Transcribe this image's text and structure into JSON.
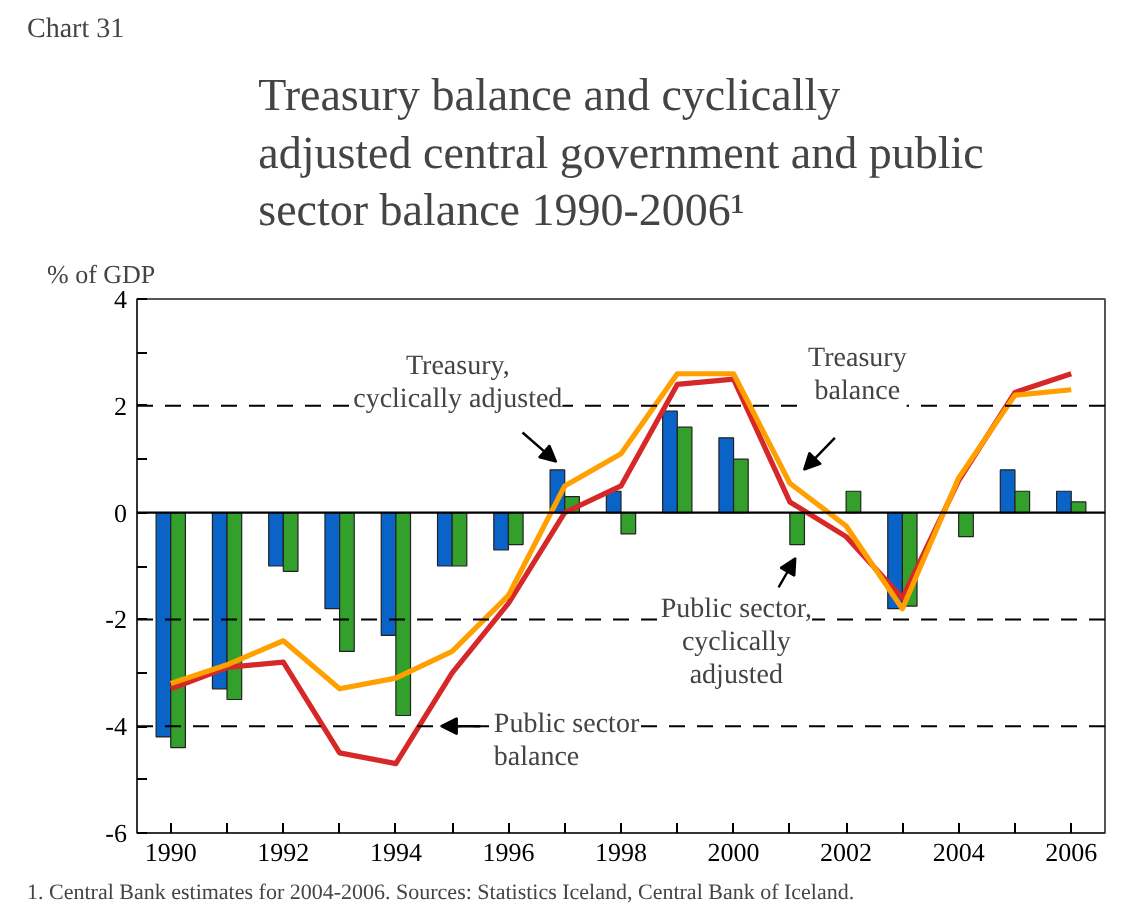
{
  "chart_data": {
    "type": "bar",
    "title": "Treasury balance and cyclically\nadjusted central government and public\nsector balance 1990-2006¹",
    "ylabel": "% of GDP",
    "x": [
      1990,
      1991,
      1992,
      1993,
      1994,
      1995,
      1996,
      1997,
      1998,
      1999,
      2000,
      2001,
      2002,
      2003,
      2004,
      2005,
      2006
    ],
    "series": [
      {
        "color": "#0a64c8",
        "values": [
          -4.2,
          -3.3,
          -1.0,
          -1.8,
          -2.3,
          -1.0,
          -0.7,
          0.8,
          0.4,
          1.9,
          1.4,
          null,
          null,
          -1.8,
          null,
          0.8,
          0.4
        ]
      },
      {
        "color": "#33a02c",
        "values": [
          -4.4,
          -3.5,
          -1.1,
          -2.6,
          -3.8,
          -1.0,
          -0.6,
          0.3,
          -0.4,
          1.6,
          1.0,
          -0.6,
          0.4,
          -1.75,
          -0.45,
          0.4,
          0.2
        ]
      },
      {
        "type": "line",
        "color": "#d62828",
        "values": [
          -3.3,
          -2.9,
          -2.8,
          -4.5,
          -4.7,
          -3.0,
          -1.7,
          0.0,
          0.5,
          2.4,
          2.5,
          0.2,
          -0.45,
          -1.6,
          0.6,
          2.25,
          2.6
        ]
      },
      {
        "type": "line",
        "color": "#ffa000",
        "values": [
          -3.2,
          -2.85,
          -2.4,
          -3.3,
          -3.1,
          -2.6,
          -1.55,
          0.5,
          1.1,
          2.6,
          2.6,
          0.55,
          -0.25,
          -1.8,
          0.65,
          2.2,
          2.3
        ]
      }
    ],
    "xlim": [
      1989.4,
      2006.6
    ],
    "xticks": [
      1990,
      {
        "value": 1991,
        "label": null
      },
      1992,
      {
        "value": 1993,
        "label": null
      },
      1994,
      {
        "value": 1995,
        "label": null
      },
      1996,
      {
        "value": 1997,
        "label": null
      },
      1998,
      {
        "value": 1999,
        "label": null
      },
      2000,
      {
        "value": 2001,
        "label": null
      },
      2002,
      {
        "value": 2003,
        "label": null
      },
      2004,
      {
        "value": 2005,
        "label": null
      },
      2006
    ],
    "ylim": [
      -6,
      4
    ],
    "yticks": [
      -6,
      {
        "value": -5,
        "label": null
      },
      -4,
      {
        "value": -3,
        "label": null
      },
      -2,
      {
        "value": -1,
        "label": null
      },
      0,
      {
        "value": 1,
        "label": null
      },
      2,
      {
        "value": 3,
        "label": null
      },
      4
    ],
    "ref_lines": [
      {
        "axis": "y",
        "value": 2,
        "line_style": "dashed",
        "color": "#000000"
      },
      {
        "axis": "y",
        "value": 0,
        "line_style": "solid",
        "color": "#000000"
      },
      {
        "axis": "y",
        "value": -2,
        "line_style": "dashed",
        "color": "#000000"
      },
      {
        "axis": "y",
        "value": -4,
        "line_style": "dashed",
        "color": "#000000"
      }
    ],
    "grid": false,
    "annotations": [
      "Chart 31",
      {
        "text": "Treasury,\ncyclically adjusted",
        "x": 1997,
        "y": 0.8
      },
      {
        "text": "Treasury\nbalance",
        "x": 2001,
        "y": 0.55
      },
      {
        "text": "Public sector,\ncyclically\nadjusted",
        "x": 2001,
        "y": -0.6
      },
      {
        "text": "Public sector\nbalance",
        "x": 1994.4,
        "y": -4.0
      },
      "1. Central Bank estimates for 2004-2006.  Sources: Statistics Iceland, Central Bank of Iceland."
    ]
  }
}
